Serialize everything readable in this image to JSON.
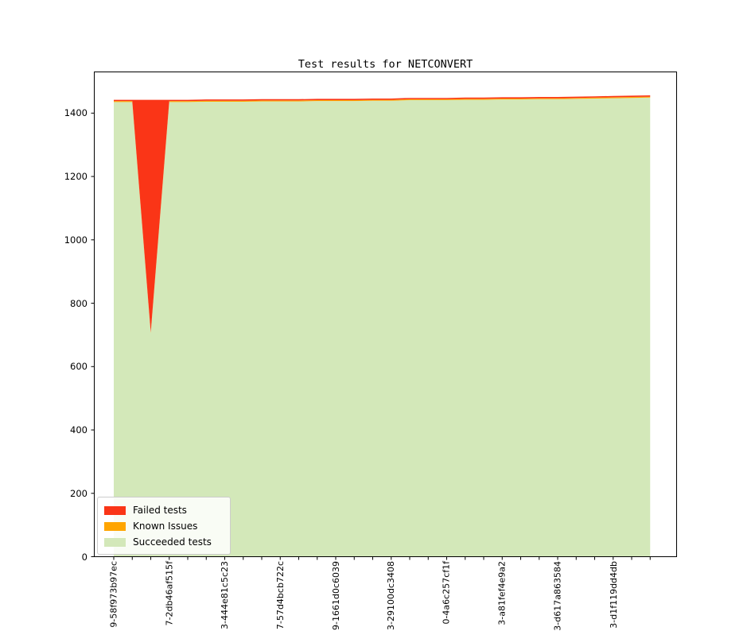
{
  "figure": {
    "title": "Test results for NETCONVERT",
    "background_color": "#ffffff"
  },
  "legend": {
    "position": "lower left",
    "items": [
      {
        "name": "failed-tests",
        "label": "Failed tests",
        "color": "#fa3517"
      },
      {
        "name": "known-issues",
        "label": "Known Issues",
        "color": "#ffa500"
      },
      {
        "name": "succeeded-tests",
        "label": "Succeeded tests",
        "color": "#d3e8b9"
      }
    ]
  },
  "chart_data": {
    "type": "area",
    "stacked": true,
    "title": "Test results for NETCONVERT",
    "xlabel": "",
    "ylabel": "",
    "grid": false,
    "legend_position": "lower left",
    "n_points": 30,
    "ylim": [
      0,
      1530
    ],
    "y_ticks": [
      0,
      200,
      400,
      600,
      800,
      1000,
      1200,
      1400
    ],
    "x_tick_label_every": 3,
    "x_tick_labels": [
      "9-58f973b97ec",
      "7-2db46af515f",
      "3-444e81c5c23",
      "7-57d4bcb722c",
      "9-1661d0c6039",
      "3-29100dc3408",
      "0-4a6c257cf1f",
      "3-a81fef4e9a2",
      "3-d617a863584",
      "3-d1f119dd4db"
    ],
    "series": [
      {
        "name": "Failed tests",
        "color": "#fa3517",
        "values": [
          4,
          4,
          734,
          4,
          4,
          4,
          4,
          4,
          4,
          4,
          4,
          4,
          4,
          4,
          4,
          4,
          4,
          4,
          4,
          4,
          4,
          4,
          4,
          4,
          4,
          4,
          4,
          4,
          4,
          4
        ]
      },
      {
        "name": "Known Issues",
        "color": "#ffa500",
        "values": [
          3,
          3,
          3,
          3,
          3,
          3,
          3,
          3,
          3,
          3,
          3,
          3,
          3,
          3,
          3,
          3,
          3,
          3,
          3,
          3,
          3,
          3,
          3,
          3,
          3,
          3,
          3,
          3,
          3,
          3
        ]
      },
      {
        "name": "Succeeded tests",
        "color": "#d3e8b9",
        "values": [
          1435,
          1435,
          705,
          1435,
          1435,
          1436,
          1436,
          1436,
          1437,
          1437,
          1437,
          1438,
          1438,
          1438,
          1439,
          1439,
          1441,
          1441,
          1441,
          1442,
          1442,
          1443,
          1443,
          1444,
          1444,
          1445,
          1446,
          1447,
          1448,
          1449
        ]
      }
    ]
  }
}
